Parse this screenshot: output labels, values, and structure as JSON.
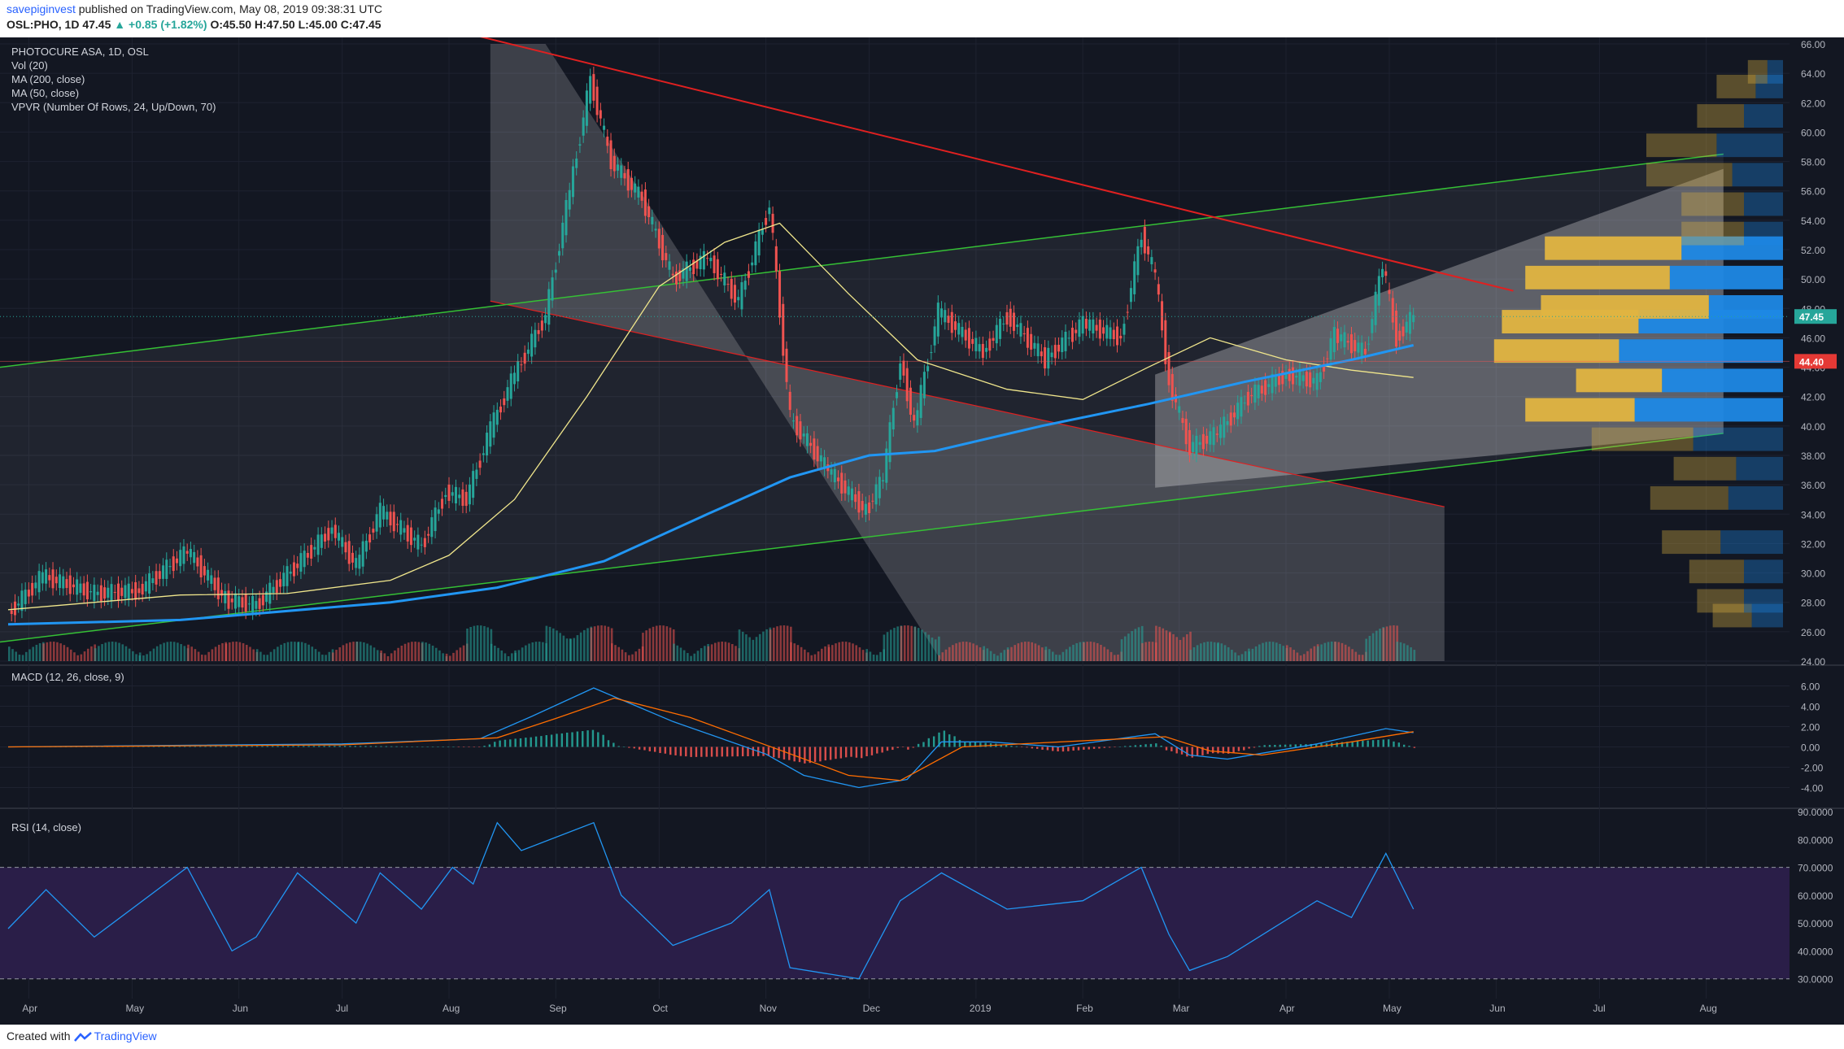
{
  "header": {
    "user": "savepiginvest",
    "published_text": "published on TradingView.com, May 08, 2019 09:38:31 UTC",
    "symbol_line": "OSL:PHO, 1D 47.45",
    "change": "▲ +0.85 (+1.82%)",
    "ohlc": "O:45.50 H:47.50 L:45.00 C:47.45"
  },
  "legend": {
    "title": "PHOTOCURE ASA, 1D, OSL",
    "vol": "Vol (20)",
    "ma200": "MA (200, close)",
    "ma50": "MA (50, close)",
    "vpvr": "VPVR (Number Of Rows, 24, Up/Down, 70)"
  },
  "panes": {
    "macd_label": "MACD (12, 26, close, 9)",
    "rsi_label": "RSI (14, close)"
  },
  "footer": {
    "created_with": "Created with",
    "brand": "TradingView"
  },
  "colors": {
    "bg": "#131722",
    "up": "#26a69a",
    "down": "#ef5350",
    "ma200": "#2196f3",
    "ma50": "#f0e68c",
    "trend_red": "#e02020",
    "channel_green": "#35c035",
    "rsi_band": "#2a1e48"
  },
  "chart_data": [
    {
      "type": "candlestick",
      "title": "PHOTOCURE ASA, 1D, OSL",
      "last_price": 47.45,
      "marked_level": 44.4,
      "ylim": [
        24,
        66
      ],
      "y_ticks": [
        "24.00",
        "26.00",
        "28.00",
        "30.00",
        "32.00",
        "34.00",
        "36.00",
        "38.00",
        "40.00",
        "42.00",
        "44.00",
        "46.00",
        "48.00",
        "50.00",
        "52.00",
        "54.00",
        "56.00",
        "58.00",
        "60.00",
        "62.00",
        "64.00",
        "66.00"
      ],
      "x_ticks": [
        "Apr",
        "May",
        "Jun",
        "Jul",
        "Aug",
        "Sep",
        "Oct",
        "Nov",
        "Dec",
        "2019",
        "Feb",
        "Mar",
        "Apr",
        "May",
        "Jun",
        "Jul",
        "Aug"
      ],
      "price_path": [
        {
          "date": "2018-03-26",
          "close": 27.2
        },
        {
          "date": "2018-04-05",
          "close": 29.8
        },
        {
          "date": "2018-04-20",
          "close": 28.6
        },
        {
          "date": "2018-05-03",
          "close": 28.8
        },
        {
          "date": "2018-05-17",
          "close": 31.5
        },
        {
          "date": "2018-05-28",
          "close": 28.2
        },
        {
          "date": "2018-06-06",
          "close": 27.8
        },
        {
          "date": "2018-06-18",
          "close": 30.6
        },
        {
          "date": "2018-06-28",
          "close": 33.0
        },
        {
          "date": "2018-07-05",
          "close": 30.5
        },
        {
          "date": "2018-07-12",
          "close": 34.2
        },
        {
          "date": "2018-07-24",
          "close": 31.8
        },
        {
          "date": "2018-07-31",
          "close": 35.5
        },
        {
          "date": "2018-08-06",
          "close": 35.0
        },
        {
          "date": "2018-08-13",
          "close": 39.8
        },
        {
          "date": "2018-08-20",
          "close": 43.5
        },
        {
          "date": "2018-08-29",
          "close": 47.5
        },
        {
          "date": "2018-09-05",
          "close": 56.0
        },
        {
          "date": "2018-09-11",
          "close": 63.5
        },
        {
          "date": "2018-09-17",
          "close": 58.0
        },
        {
          "date": "2018-09-26",
          "close": 55.5
        },
        {
          "date": "2018-10-05",
          "close": 50.0
        },
        {
          "date": "2018-10-15",
          "close": 51.5
        },
        {
          "date": "2018-10-24",
          "close": 48.5
        },
        {
          "date": "2018-11-02",
          "close": 55.0
        },
        {
          "date": "2018-11-08",
          "close": 40.5
        },
        {
          "date": "2018-11-19",
          "close": 37.0
        },
        {
          "date": "2018-11-30",
          "close": 34.2
        },
        {
          "date": "2018-12-05",
          "close": 36.5
        },
        {
          "date": "2018-12-10",
          "close": 44.5
        },
        {
          "date": "2018-12-14",
          "close": 40.0
        },
        {
          "date": "2018-12-21",
          "close": 47.8
        },
        {
          "date": "2019-01-03",
          "close": 45.0
        },
        {
          "date": "2019-01-10",
          "close": 47.5
        },
        {
          "date": "2019-01-21",
          "close": 44.5
        },
        {
          "date": "2019-02-01",
          "close": 47.0
        },
        {
          "date": "2019-02-12",
          "close": 46.0
        },
        {
          "date": "2019-02-18",
          "close": 53.0
        },
        {
          "date": "2019-02-22",
          "close": 50.2
        },
        {
          "date": "2019-02-26",
          "close": 43.0
        },
        {
          "date": "2019-03-04",
          "close": 38.5
        },
        {
          "date": "2019-03-12",
          "close": 39.5
        },
        {
          "date": "2019-03-21",
          "close": 42.0
        },
        {
          "date": "2019-04-01",
          "close": 43.5
        },
        {
          "date": "2019-04-10",
          "close": 43.0
        },
        {
          "date": "2019-04-15",
          "close": 46.2
        },
        {
          "date": "2019-04-24",
          "close": 45.0
        },
        {
          "date": "2019-04-29",
          "close": 51.0
        },
        {
          "date": "2019-05-03",
          "close": 46.0
        },
        {
          "date": "2019-05-08",
          "close": 47.45
        }
      ],
      "ma200_path": [
        {
          "date": "2018-03-26",
          "value": 26.5
        },
        {
          "date": "2018-05-15",
          "value": 26.8
        },
        {
          "date": "2018-07-15",
          "value": 28.0
        },
        {
          "date": "2018-08-15",
          "value": 29.0
        },
        {
          "date": "2018-09-15",
          "value": 30.8
        },
        {
          "date": "2018-10-15",
          "value": 34.0
        },
        {
          "date": "2018-11-08",
          "value": 36.5
        },
        {
          "date": "2018-12-01",
          "value": 38.0
        },
        {
          "date": "2018-12-20",
          "value": 38.3
        },
        {
          "date": "2019-01-20",
          "value": 40.0
        },
        {
          "date": "2019-02-20",
          "value": 41.5
        },
        {
          "date": "2019-03-20",
          "value": 43.0
        },
        {
          "date": "2019-04-20",
          "value": 44.5
        },
        {
          "date": "2019-05-08",
          "value": 45.5
        }
      ],
      "ma50_path": [
        {
          "date": "2018-03-26",
          "value": 27.5
        },
        {
          "date": "2018-05-15",
          "value": 28.5
        },
        {
          "date": "2018-06-15",
          "value": 28.6
        },
        {
          "date": "2018-07-15",
          "value": 29.5
        },
        {
          "date": "2018-08-01",
          "value": 31.2
        },
        {
          "date": "2018-08-20",
          "value": 35.0
        },
        {
          "date": "2018-09-10",
          "value": 42.0
        },
        {
          "date": "2018-10-01",
          "value": 49.5
        },
        {
          "date": "2018-10-20",
          "value": 52.5
        },
        {
          "date": "2018-11-05",
          "value": 53.8
        },
        {
          "date": "2018-11-25",
          "value": 49.0
        },
        {
          "date": "2018-12-15",
          "value": 44.5
        },
        {
          "date": "2019-01-10",
          "value": 42.5
        },
        {
          "date": "2019-02-01",
          "value": 41.8
        },
        {
          "date": "2019-02-20",
          "value": 44.0
        },
        {
          "date": "2019-03-10",
          "value": 46.0
        },
        {
          "date": "2019-04-01",
          "value": 44.5
        },
        {
          "date": "2019-04-20",
          "value": 43.8
        },
        {
          "date": "2019-05-08",
          "value": 43.3
        }
      ],
      "volume_profile": [
        {
          "price": 26.9,
          "up": 1.0,
          "down": 0.8
        },
        {
          "price": 27.9,
          "up": 1.2,
          "down": 1.0
        },
        {
          "price": 29.9,
          "up": 1.4,
          "down": 1.0
        },
        {
          "price": 31.9,
          "up": 1.5,
          "down": 1.6
        },
        {
          "price": 34.9,
          "up": 2.0,
          "down": 1.4
        },
        {
          "price": 36.9,
          "up": 1.6,
          "down": 1.2
        },
        {
          "price": 38.9,
          "up": 2.6,
          "down": 2.3
        },
        {
          "price": 40.9,
          "up": 2.8,
          "down": 3.8
        },
        {
          "price": 42.9,
          "up": 2.2,
          "down": 3.1
        },
        {
          "price": 44.9,
          "up": 3.2,
          "down": 4.2
        },
        {
          "price": 46.9,
          "up": 3.5,
          "down": 3.7
        },
        {
          "price": 47.9,
          "up": 4.3,
          "down": 1.9
        },
        {
          "price": 49.9,
          "up": 3.7,
          "down": 2.9
        },
        {
          "price": 51.9,
          "up": 3.5,
          "down": 2.6
        },
        {
          "price": 52.9,
          "up": 1.6,
          "down": 1.0
        },
        {
          "price": 54.9,
          "up": 1.6,
          "down": 1.0
        },
        {
          "price": 56.9,
          "up": 2.2,
          "down": 1.3
        },
        {
          "price": 58.9,
          "up": 1.8,
          "down": 1.7
        },
        {
          "price": 60.9,
          "up": 1.2,
          "down": 1.0
        },
        {
          "price": 62.9,
          "up": 1.0,
          "down": 0.7
        },
        {
          "price": 63.9,
          "up": 0.5,
          "down": 0.4
        }
      ]
    },
    {
      "type": "line",
      "title": "MACD (12, 26, close, 9)",
      "ylim": [
        -5,
        7
      ],
      "y_ticks": [
        "-4.00",
        "-2.00",
        "0.00",
        "2.00",
        "4.00",
        "6.00"
      ],
      "macd_path": [
        {
          "date": "2018-03-26",
          "value": 0.0
        },
        {
          "date": "2018-07-01",
          "value": 0.3
        },
        {
          "date": "2018-08-10",
          "value": 0.8
        },
        {
          "date": "2018-08-25",
          "value": 3.0
        },
        {
          "date": "2018-09-12",
          "value": 5.8
        },
        {
          "date": "2018-10-05",
          "value": 2.5
        },
        {
          "date": "2018-11-01",
          "value": -0.7
        },
        {
          "date": "2018-11-12",
          "value": -2.8
        },
        {
          "date": "2018-11-28",
          "value": -4.0
        },
        {
          "date": "2018-12-12",
          "value": -3.2
        },
        {
          "date": "2018-12-22",
          "value": 0.5
        },
        {
          "date": "2019-01-05",
          "value": 0.5
        },
        {
          "date": "2019-01-25",
          "value": 0.0
        },
        {
          "date": "2019-02-22",
          "value": 1.3
        },
        {
          "date": "2019-03-04",
          "value": -0.8
        },
        {
          "date": "2019-03-15",
          "value": -1.2
        },
        {
          "date": "2019-04-10",
          "value": 0.3
        },
        {
          "date": "2019-04-30",
          "value": 1.8
        },
        {
          "date": "2019-05-08",
          "value": 1.4
        }
      ],
      "signal_path": [
        {
          "date": "2018-03-26",
          "value": 0.0
        },
        {
          "date": "2018-07-01",
          "value": 0.2
        },
        {
          "date": "2018-08-15",
          "value": 0.9
        },
        {
          "date": "2018-09-01",
          "value": 2.8
        },
        {
          "date": "2018-09-18",
          "value": 4.8
        },
        {
          "date": "2018-10-10",
          "value": 2.9
        },
        {
          "date": "2018-11-05",
          "value": -0.3
        },
        {
          "date": "2018-11-25",
          "value": -2.8
        },
        {
          "date": "2018-12-10",
          "value": -3.3
        },
        {
          "date": "2018-12-28",
          "value": 0.0
        },
        {
          "date": "2019-01-20",
          "value": 0.4
        },
        {
          "date": "2019-02-25",
          "value": 1.0
        },
        {
          "date": "2019-03-10",
          "value": -0.4
        },
        {
          "date": "2019-03-25",
          "value": -0.8
        },
        {
          "date": "2019-04-20",
          "value": 0.5
        },
        {
          "date": "2019-05-08",
          "value": 1.5
        }
      ]
    },
    {
      "type": "line",
      "title": "RSI (14, close)",
      "ylim": [
        27,
        90
      ],
      "y_ticks": [
        "30.0000",
        "40.0000",
        "50.0000",
        "60.0000",
        "70.0000",
        "80.0000",
        "90.0000"
      ],
      "band": [
        30,
        70
      ],
      "rsi_path": [
        {
          "date": "2018-03-26",
          "value": 48
        },
        {
          "date": "2018-04-06",
          "value": 62
        },
        {
          "date": "2018-04-20",
          "value": 45
        },
        {
          "date": "2018-05-17",
          "value": 70
        },
        {
          "date": "2018-05-30",
          "value": 40
        },
        {
          "date": "2018-06-06",
          "value": 45
        },
        {
          "date": "2018-06-18",
          "value": 68
        },
        {
          "date": "2018-07-05",
          "value": 50
        },
        {
          "date": "2018-07-12",
          "value": 68
        },
        {
          "date": "2018-07-24",
          "value": 55
        },
        {
          "date": "2018-08-02",
          "value": 70
        },
        {
          "date": "2018-08-08",
          "value": 64
        },
        {
          "date": "2018-08-15",
          "value": 86
        },
        {
          "date": "2018-08-22",
          "value": 76
        },
        {
          "date": "2018-09-12",
          "value": 86
        },
        {
          "date": "2018-09-20",
          "value": 60
        },
        {
          "date": "2018-10-05",
          "value": 42
        },
        {
          "date": "2018-10-22",
          "value": 50
        },
        {
          "date": "2018-11-02",
          "value": 62
        },
        {
          "date": "2018-11-08",
          "value": 34
        },
        {
          "date": "2018-11-28",
          "value": 30
        },
        {
          "date": "2018-12-10",
          "value": 58
        },
        {
          "date": "2018-12-22",
          "value": 68
        },
        {
          "date": "2019-01-10",
          "value": 55
        },
        {
          "date": "2019-02-01",
          "value": 58
        },
        {
          "date": "2019-02-18",
          "value": 70
        },
        {
          "date": "2019-02-26",
          "value": 46
        },
        {
          "date": "2019-03-04",
          "value": 33
        },
        {
          "date": "2019-03-15",
          "value": 38
        },
        {
          "date": "2019-04-10",
          "value": 58
        },
        {
          "date": "2019-04-20",
          "value": 52
        },
        {
          "date": "2019-04-30",
          "value": 75
        },
        {
          "date": "2019-05-08",
          "value": 55
        }
      ]
    }
  ]
}
